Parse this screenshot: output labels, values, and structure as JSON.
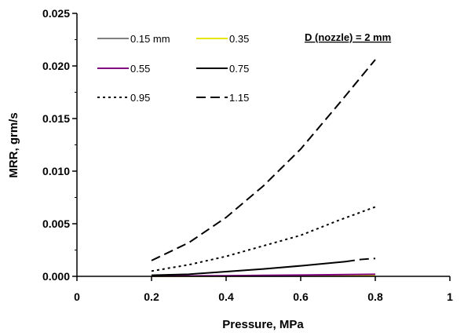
{
  "chart_data": {
    "type": "line",
    "xlabel": "Pressure,  MPa",
    "ylabel": "MRR, grm/s",
    "xlim": [
      0,
      1
    ],
    "ylim": [
      0,
      0.025
    ],
    "x_ticks": [
      0,
      0.2,
      0.4,
      0.6,
      0.8,
      1
    ],
    "x_tick_labels": [
      "0",
      "0.2",
      "0.4",
      "0.6",
      "0.8",
      "1"
    ],
    "y_ticks": [
      0,
      0.005,
      0.01,
      0.015,
      0.02,
      0.025
    ],
    "y_tick_labels": [
      "0.000",
      "0.005",
      "0.010",
      "0.015",
      "0.020",
      "0.025"
    ],
    "grid": false,
    "legend_placement": "top-left",
    "annotation": "D (nozzle) = 2 mm",
    "series": [
      {
        "name": "0.15 mm",
        "color": "#808080",
        "style": "solid",
        "x": [
          0.2,
          0.3,
          0.4,
          0.5,
          0.6,
          0.7,
          0.8
        ],
        "y": [
          0.0,
          0.0,
          1e-05,
          1e-05,
          2e-05,
          2e-05,
          3e-05
        ]
      },
      {
        "name": "0.35",
        "color": "#e6e600",
        "style": "solid",
        "x": [
          0.2,
          0.3,
          0.4,
          0.5,
          0.6,
          0.7,
          0.8
        ],
        "y": [
          1e-05,
          2e-05,
          3e-05,
          4e-05,
          5e-05,
          6e-05,
          8e-05
        ]
      },
      {
        "name": "0.55",
        "color": "#800080",
        "style": "solid",
        "x": [
          0.2,
          0.3,
          0.4,
          0.5,
          0.6,
          0.7,
          0.8
        ],
        "y": [
          2e-05,
          4e-05,
          6e-05,
          9e-05,
          0.00012,
          0.00016,
          0.0002
        ]
      },
      {
        "name": "0.75",
        "color": "#000000",
        "style": "solid",
        "x": [
          0.2,
          0.3,
          0.4,
          0.5,
          0.6,
          0.72
        ],
        "y": [
          0.0001,
          0.0002,
          0.00045,
          0.0007,
          0.001,
          0.0014
        ]
      },
      {
        "name": "0.95",
        "color": "#000000",
        "style": "dotted",
        "x": [
          0.2,
          0.3,
          0.4,
          0.5,
          0.6,
          0.7,
          0.8
        ],
        "y": [
          0.0005,
          0.0011,
          0.0019,
          0.0029,
          0.0039,
          0.0053,
          0.0066
        ]
      },
      {
        "name": "1.15",
        "color": "#000000",
        "style": "dashed",
        "x": [
          0.2,
          0.3,
          0.4,
          0.5,
          0.6,
          0.7,
          0.8
        ],
        "y": [
          0.0015,
          0.0032,
          0.0056,
          0.0086,
          0.0121,
          0.0163,
          0.0206
        ]
      },
      {
        "name": "",
        "color": "#000000",
        "style": "dashed",
        "x": [
          0.72,
          0.76,
          0.8
        ],
        "y": [
          0.0014,
          0.0016,
          0.0017
        ]
      }
    ]
  }
}
